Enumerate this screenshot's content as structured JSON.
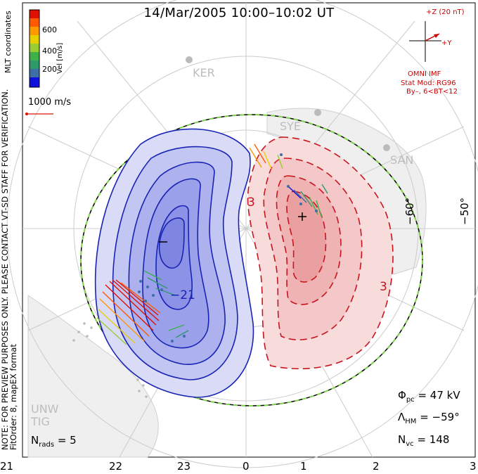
{
  "title": "14/Mar/2005 10:00–10:02 UT",
  "side_text": {
    "line1": "NOTE: FOR PREVIEW PURPOSES ONLY. PLEASE CONTACT VT-SD STAFF FOR VERIFICATION.",
    "line2": "FitOrder: 8, mapEX format",
    "line3_right": "MLT coordinates"
  },
  "colorbar": {
    "label": "Vel [m/s]",
    "ticks": [
      "600",
      "400",
      "200"
    ],
    "colors": [
      "#1010dd",
      "#3d6fa6",
      "#2e9a6a",
      "#3fb04a",
      "#9acd32",
      "#e8d000",
      "#ff9900",
      "#ff5a00",
      "#e01000"
    ]
  },
  "scale_vector": {
    "label": "1000 m/s"
  },
  "imf": {
    "z_label": "+Z (20 nT)",
    "y_label": "+Y",
    "source": "OMNI IMF",
    "model": "Stat Mod: RG96",
    "condition": "By–, 6<BT<12"
  },
  "stations": [
    "KER",
    "SYE",
    "SAN",
    "UNW",
    "TIG"
  ],
  "latitude_labels": [
    "−60°",
    "−50°"
  ],
  "contour_labels": {
    "neg": "−21",
    "pos": "3",
    "pos2": "3",
    "neg_center": "−",
    "pos_center": "+"
  },
  "stats": {
    "phi_label": "Φ",
    "phi_sub": "pc",
    "phi_value": "= 47 kV",
    "lambda_label": "Λ",
    "lambda_sub": "HM",
    "lambda_value": "= −59°",
    "nvc_label": "N",
    "nvc_sub": "vc",
    "nvc_value": "= 148",
    "nrads_label": "N",
    "nrads_sub": "rads",
    "nrads_value": "= 5"
  },
  "mlt_axis": [
    "21",
    "22",
    "23",
    "0",
    "1",
    "2",
    "3"
  ],
  "colors": {
    "neg_fill": "#8c93e6",
    "neg_line": "#1a24b4",
    "pos_fill": "#ec9a9a",
    "pos_line": "#c8141e",
    "boundary_dash": "#7fd24a"
  }
}
